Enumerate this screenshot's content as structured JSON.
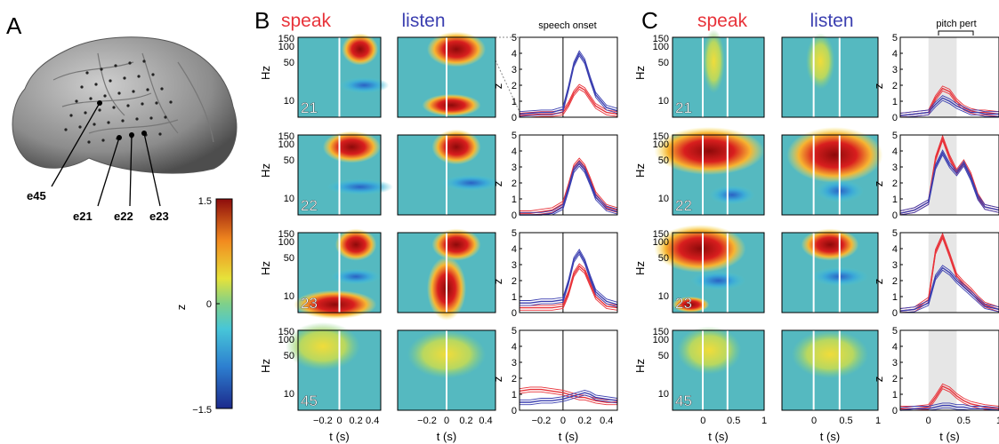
{
  "panels": {
    "a": "A",
    "b": "B",
    "c": "C"
  },
  "headers": {
    "speak": "speak",
    "listen": "listen"
  },
  "annotations": {
    "speech_onset": "speech onset",
    "pitch_pert": "pitch pert"
  },
  "axes": {
    "hz": "Hz",
    "z": "z",
    "t": "t (s)"
  },
  "hz_ticks": [
    "150",
    "100",
    "50",
    "10"
  ],
  "z_ticks": [
    "5",
    "4",
    "3",
    "2",
    "1",
    "0"
  ],
  "b_time_ticks": [
    "−0.2",
    "0",
    "0.2",
    "0.4"
  ],
  "c_time_ticks": [
    "0",
    "0.5",
    "1"
  ],
  "c_z_time_ticks": [
    "0",
    "0.5",
    "1"
  ],
  "colorbar": {
    "max": "1.5",
    "mid": "0",
    "min": "−1.5",
    "label": "z"
  },
  "electrodes": [
    "e45",
    "e21",
    "e22",
    "e23"
  ],
  "rows": [
    "21",
    "22",
    "23",
    "45"
  ],
  "colors": {
    "speak": "#e8333a",
    "listen": "#3b3fb0",
    "bg": "#55b9c0",
    "shade": "#e6e6e6"
  },
  "chart_data": [
    {
      "type": "line",
      "title": "B speech onset",
      "xlabel": "t (s)",
      "ylabel": "z",
      "xlim": [
        -0.4,
        0.5
      ],
      "ylim": [
        0,
        5
      ],
      "x": [
        -0.4,
        -0.3,
        -0.2,
        -0.1,
        0,
        0.05,
        0.1,
        0.15,
        0.2,
        0.25,
        0.3,
        0.4,
        0.5
      ],
      "rows": [
        {
          "electrode": "21",
          "series": [
            {
              "name": "speak",
              "values": [
                0.1,
                0.15,
                0.2,
                0.2,
                0.3,
                0.8,
                1.5,
                1.9,
                1.7,
                1.2,
                0.7,
                0.3,
                0.2
              ]
            },
            {
              "name": "listen",
              "values": [
                0.2,
                0.25,
                0.3,
                0.3,
                0.5,
                1.8,
                3.3,
                4.0,
                3.5,
                2.4,
                1.4,
                0.6,
                0.4
              ]
            }
          ]
        },
        {
          "electrode": "22",
          "series": [
            {
              "name": "speak",
              "values": [
                0.1,
                0.1,
                0.2,
                0.3,
                0.7,
                1.8,
                3.0,
                3.4,
                3.0,
                2.2,
                1.3,
                0.5,
                0.3
              ]
            },
            {
              "name": "listen",
              "values": [
                0.0,
                0.0,
                0.0,
                0.1,
                0.5,
                1.6,
                2.8,
                3.2,
                2.8,
                2.0,
                1.1,
                0.4,
                0.2
              ]
            }
          ]
        },
        {
          "electrode": "23",
          "series": [
            {
              "name": "speak",
              "values": [
                0.3,
                0.3,
                0.3,
                0.3,
                0.4,
                1.2,
                2.4,
                2.9,
                2.6,
                1.8,
                1.0,
                0.4,
                0.3
              ]
            },
            {
              "name": "listen",
              "values": [
                0.6,
                0.6,
                0.7,
                0.7,
                0.8,
                1.9,
                3.3,
                3.8,
                3.2,
                2.2,
                1.3,
                0.7,
                0.5
              ]
            }
          ]
        },
        {
          "electrode": "45",
          "series": [
            {
              "name": "speak",
              "values": [
                1.2,
                1.3,
                1.3,
                1.2,
                1.1,
                1.0,
                0.9,
                0.8,
                0.8,
                0.7,
                0.6,
                0.5,
                0.5
              ]
            },
            {
              "name": "listen",
              "values": [
                0.5,
                0.5,
                0.6,
                0.6,
                0.7,
                0.8,
                0.9,
                1.0,
                1.1,
                1.0,
                0.8,
                0.7,
                0.6
              ]
            }
          ]
        }
      ]
    },
    {
      "type": "line",
      "title": "C pitch pert",
      "xlabel": "t (s)",
      "ylabel": "z",
      "xlim": [
        -0.4,
        1.0
      ],
      "ylim": [
        0,
        5
      ],
      "x": [
        -0.4,
        -0.2,
        0,
        0.1,
        0.2,
        0.3,
        0.4,
        0.5,
        0.6,
        0.7,
        0.8,
        1.0
      ],
      "rows": [
        {
          "electrode": "21",
          "series": [
            {
              "name": "speak",
              "values": [
                0.1,
                0.2,
                0.3,
                1.2,
                1.8,
                1.6,
                1.0,
                0.6,
                0.4,
                0.3,
                0.3,
                0.2
              ]
            },
            {
              "name": "listen",
              "values": [
                0.1,
                0.2,
                0.3,
                0.8,
                1.2,
                1.0,
                0.7,
                0.5,
                0.3,
                0.3,
                0.2,
                0.2
              ]
            }
          ]
        },
        {
          "electrode": "22",
          "series": [
            {
              "name": "speak",
              "values": [
                0.1,
                0.3,
                0.8,
                3.5,
                4.8,
                3.6,
                2.7,
                3.3,
                2.5,
                1.2,
                0.5,
                0.3
              ]
            },
            {
              "name": "listen",
              "values": [
                0.1,
                0.3,
                0.8,
                3.0,
                3.9,
                3.1,
                2.6,
                3.2,
                2.3,
                1.1,
                0.5,
                0.3
              ]
            }
          ]
        },
        {
          "electrode": "23",
          "series": [
            {
              "name": "speak",
              "values": [
                0.1,
                0.2,
                0.8,
                3.8,
                4.8,
                3.6,
                2.3,
                1.8,
                1.4,
                0.9,
                0.5,
                0.2
              ]
            },
            {
              "name": "listen",
              "values": [
                0.1,
                0.2,
                0.6,
                2.2,
                2.8,
                2.5,
                2.0,
                1.6,
                1.2,
                0.8,
                0.4,
                0.2
              ]
            }
          ]
        },
        {
          "electrode": "45",
          "series": [
            {
              "name": "speak",
              "values": [
                0.1,
                0.1,
                0.2,
                0.8,
                1.5,
                1.3,
                0.9,
                0.6,
                0.4,
                0.3,
                0.2,
                0.1
              ]
            },
            {
              "name": "listen",
              "values": [
                0.0,
                0.1,
                0.1,
                0.2,
                0.3,
                0.3,
                0.2,
                0.2,
                0.1,
                0.1,
                0.1,
                0.0
              ]
            }
          ]
        }
      ]
    }
  ]
}
